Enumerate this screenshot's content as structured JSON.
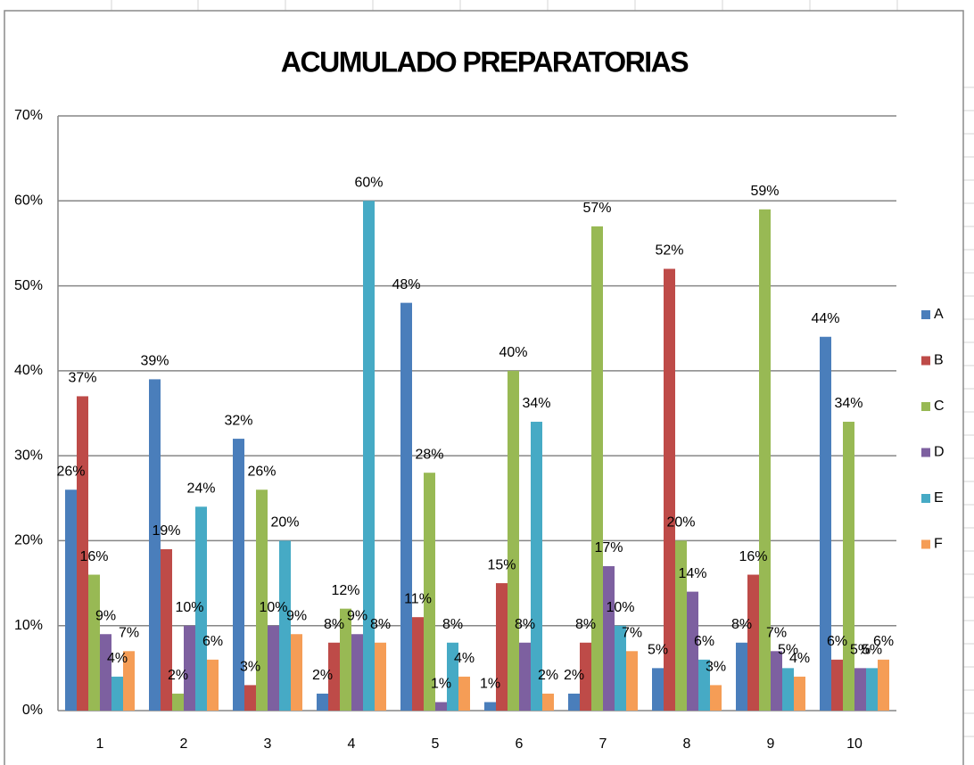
{
  "chart_data": {
    "type": "bar",
    "title": "ACUMULADO PREPARATORIAS",
    "categories": [
      "1",
      "2",
      "3",
      "4",
      "5",
      "6",
      "7",
      "8",
      "9",
      "10"
    ],
    "series": [
      {
        "name": "A",
        "color": "#4a7ebb",
        "values": [
          26,
          39,
          32,
          2,
          48,
          1,
          2,
          5,
          8,
          44
        ],
        "value_labels": [
          "26%",
          "39%",
          "32%",
          "2%",
          "48%",
          "1%",
          "2%",
          "5%",
          "8%",
          "44%"
        ]
      },
      {
        "name": "B",
        "color": "#be4b48",
        "values": [
          37,
          19,
          3,
          8,
          11,
          15,
          8,
          52,
          16,
          6
        ],
        "value_labels": [
          "37%",
          "19%",
          "3%",
          "8%",
          "11%",
          "15%",
          "8%",
          "52%",
          "16%",
          "6%"
        ]
      },
      {
        "name": "C",
        "color": "#98b954",
        "values": [
          16,
          2,
          26,
          12,
          28,
          40,
          57,
          20,
          59,
          34
        ],
        "value_labels": [
          "16%",
          "2%",
          "26%",
          "12%",
          "28%",
          "40%",
          "57%",
          "20%",
          "59%",
          "34%"
        ]
      },
      {
        "name": "D",
        "color": "#7d60a0",
        "values": [
          9,
          10,
          10,
          9,
          1,
          8,
          17,
          14,
          7,
          5
        ],
        "value_labels": [
          "9%",
          "10%",
          "10%",
          "9%",
          "1%",
          "8%",
          "17%",
          "14%",
          "7%",
          "5%"
        ]
      },
      {
        "name": "E",
        "color": "#46aac5",
        "values": [
          4,
          24,
          20,
          60,
          8,
          34,
          10,
          6,
          5,
          5
        ],
        "value_labels": [
          "4%",
          "24%",
          "20%",
          "60%",
          "8%",
          "34%",
          "10%",
          "6%",
          "5%",
          "5%"
        ]
      },
      {
        "name": "F",
        "color": "#f59d56",
        "values": [
          7,
          6,
          9,
          8,
          4,
          2,
          7,
          3,
          4,
          6
        ],
        "value_labels": [
          "7%",
          "6%",
          "9%",
          "8%",
          "4%",
          "2%",
          "7%",
          "3%",
          "4%",
          "6%"
        ]
      }
    ],
    "ylim": [
      0,
      70
    ],
    "yticks": [
      {
        "value": 0,
        "label": "0%"
      },
      {
        "value": 10,
        "label": "10%"
      },
      {
        "value": 20,
        "label": "20%"
      },
      {
        "value": 30,
        "label": "30%"
      },
      {
        "value": 40,
        "label": "40%"
      },
      {
        "value": 50,
        "label": "50%"
      },
      {
        "value": 60,
        "label": "60%"
      },
      {
        "value": 70,
        "label": "70%"
      }
    ],
    "grid": true,
    "legend": "right"
  }
}
